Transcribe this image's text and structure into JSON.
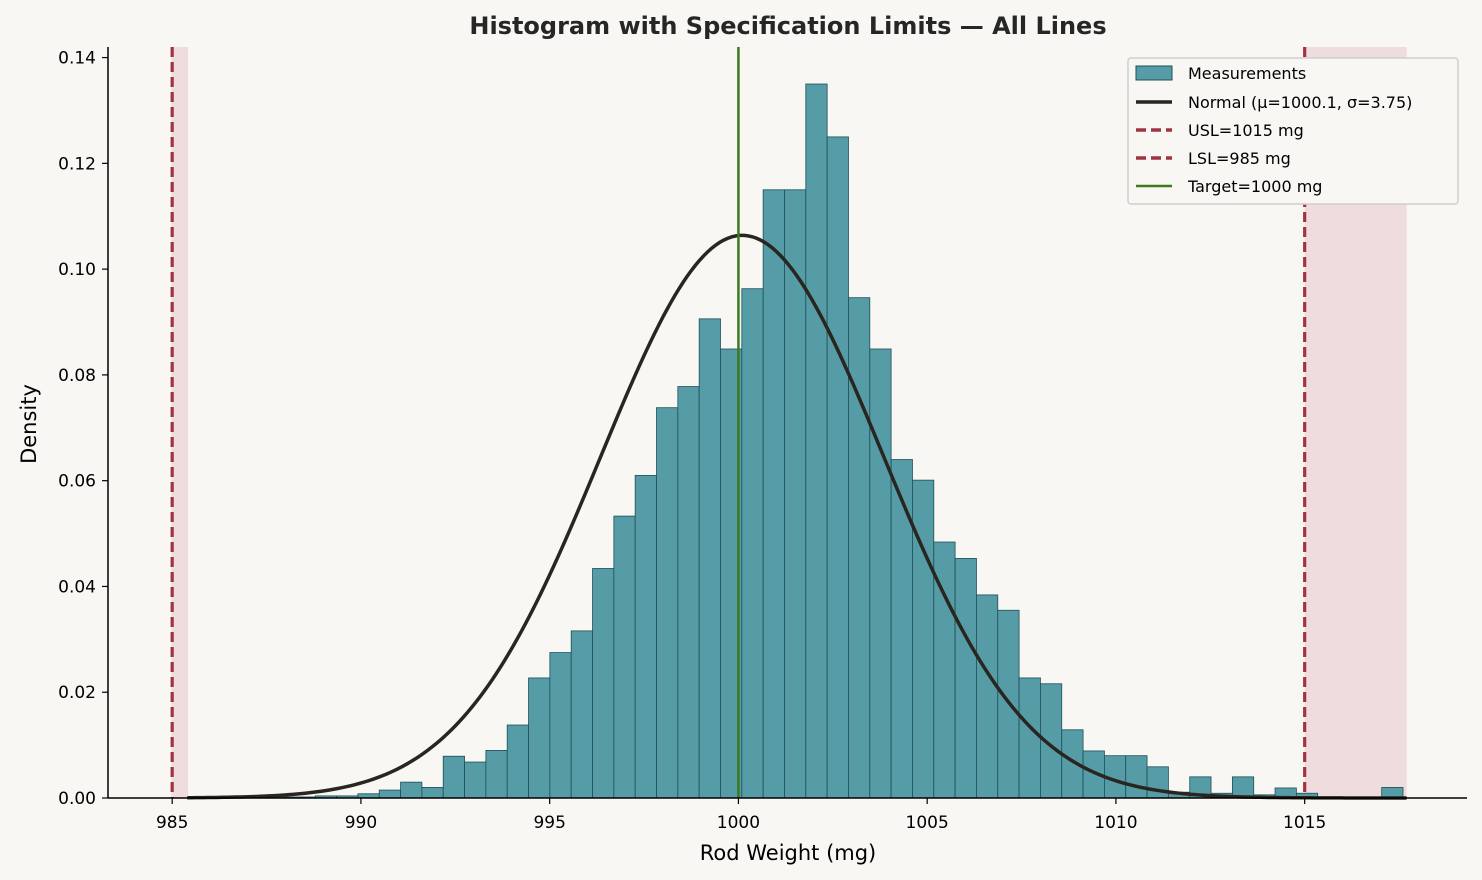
{
  "chart_data": {
    "type": "bar",
    "title": "Histogram with Specification Limits — All Lines",
    "xlabel": "Rod Weight (mg)",
    "ylabel": "Density",
    "xlim": [
      983.3,
      1019.3
    ],
    "ylim": [
      0,
      0.142
    ],
    "x_ticks": [
      985,
      990,
      995,
      1000,
      1005,
      1010,
      1015
    ],
    "x_tick_labels": [
      "985",
      "990",
      "995",
      "1000",
      "1005",
      "1010",
      "1015"
    ],
    "y_ticks": [
      0,
      0.02,
      0.04,
      0.06,
      0.08,
      0.1,
      0.12,
      0.14
    ],
    "y_tick_labels": [
      "0.00",
      "0.02",
      "0.04",
      "0.06",
      "0.08",
      "0.10",
      "0.12",
      "0.14"
    ],
    "histogram": {
      "name": "Measurements",
      "bin_start": 985.4,
      "bin_width": 0.565,
      "densities": [
        0,
        0,
        0,
        0,
        0.0002,
        0.0002,
        0.0004,
        0.0004,
        0.0008,
        0.0015,
        0.003,
        0.002,
        0.0079,
        0.0068,
        0.009,
        0.0138,
        0.0227,
        0.0275,
        0.0316,
        0.0434,
        0.0533,
        0.061,
        0.0738,
        0.0778,
        0.0906,
        0.0849,
        0.0963,
        0.115,
        0.115,
        0.135,
        0.125,
        0.0946,
        0.0849,
        0.064,
        0.0601,
        0.0484,
        0.0453,
        0.0384,
        0.0355,
        0.0227,
        0.0216,
        0.0129,
        0.0089,
        0.008,
        0.008,
        0.0059,
        0.0011,
        0.004,
        0.0009,
        0.004,
        0.0006,
        0.0019,
        0.0009,
        0,
        0,
        0,
        0.002,
        0,
        0
      ]
    },
    "normal_curve": {
      "name": "Normal (μ=1000.1, σ=3.75)",
      "mu": 1000.1,
      "sigma": 3.75,
      "x_range": [
        985.4,
        1017.7
      ]
    },
    "spec_lines": [
      {
        "name": "USL=1015 mg",
        "value": 1015,
        "style": "dashed"
      },
      {
        "name": "LSL=985 mg",
        "value": 985,
        "style": "dashed"
      },
      {
        "name": "Target=1000 mg",
        "value": 1000,
        "style": "solid"
      }
    ],
    "out_of_spec_bands": [
      [
        984.98,
        985.42
      ],
      [
        1015.0,
        1017.7
      ]
    ],
    "legend_position": "top-right",
    "grid": false
  },
  "colors": {
    "background": "#f8f7f3",
    "bar_fill": "#559ca6",
    "bar_edge": "#1f4f57",
    "curve": "#29251f",
    "spec_line": "#a33343",
    "target_line": "#3b7a22",
    "band": "#e7c9ca"
  }
}
